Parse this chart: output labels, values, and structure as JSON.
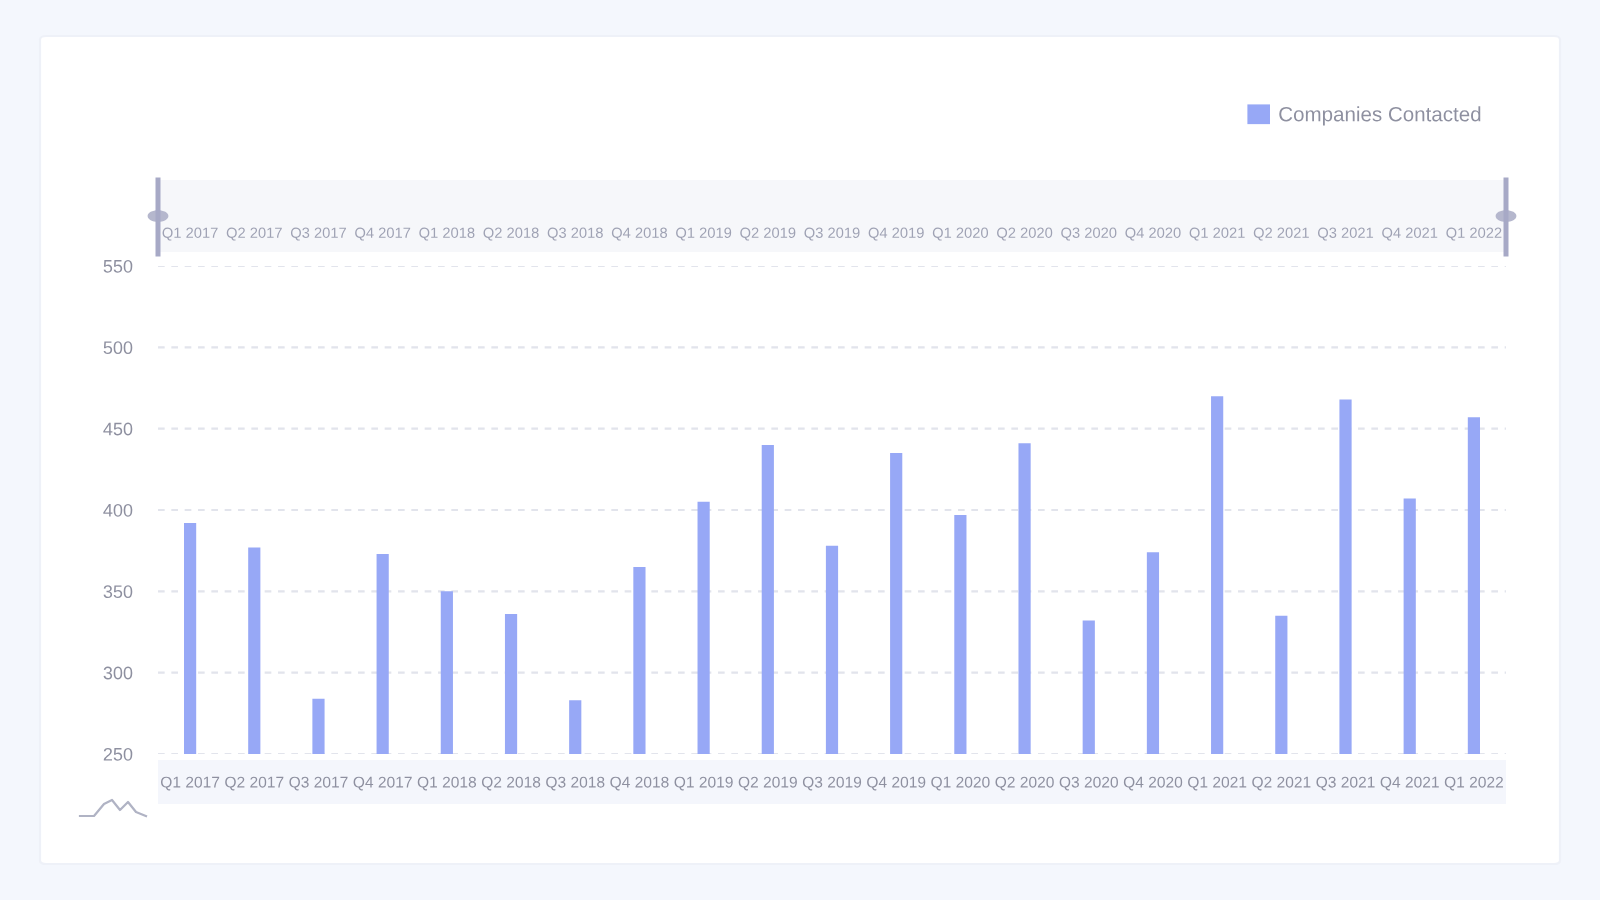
{
  "chart_data": {
    "type": "bar",
    "categories": [
      "Q1 2017",
      "Q2 2017",
      "Q3 2017",
      "Q4 2017",
      "Q1 2018",
      "Q2 2018",
      "Q3 2018",
      "Q4 2018",
      "Q1 2019",
      "Q2 2019",
      "Q3 2019",
      "Q4 2019",
      "Q1 2020",
      "Q2 2020",
      "Q3 2020",
      "Q4 2020",
      "Q1 2021",
      "Q2 2021",
      "Q3 2021",
      "Q4 2021",
      "Q1 2022"
    ],
    "series": [
      {
        "name": "Companies Contacted",
        "color": "#97a8f6",
        "values": [
          392,
          377,
          284,
          373,
          350,
          336,
          283,
          365,
          405,
          440,
          378,
          435,
          397,
          441,
          332,
          374,
          470,
          335,
          468,
          407,
          457
        ]
      }
    ],
    "ylim": [
      250,
      550
    ],
    "yticks": [
      250,
      300,
      350,
      400,
      450,
      500,
      550
    ],
    "grid": "y",
    "legend": "top right"
  }
}
